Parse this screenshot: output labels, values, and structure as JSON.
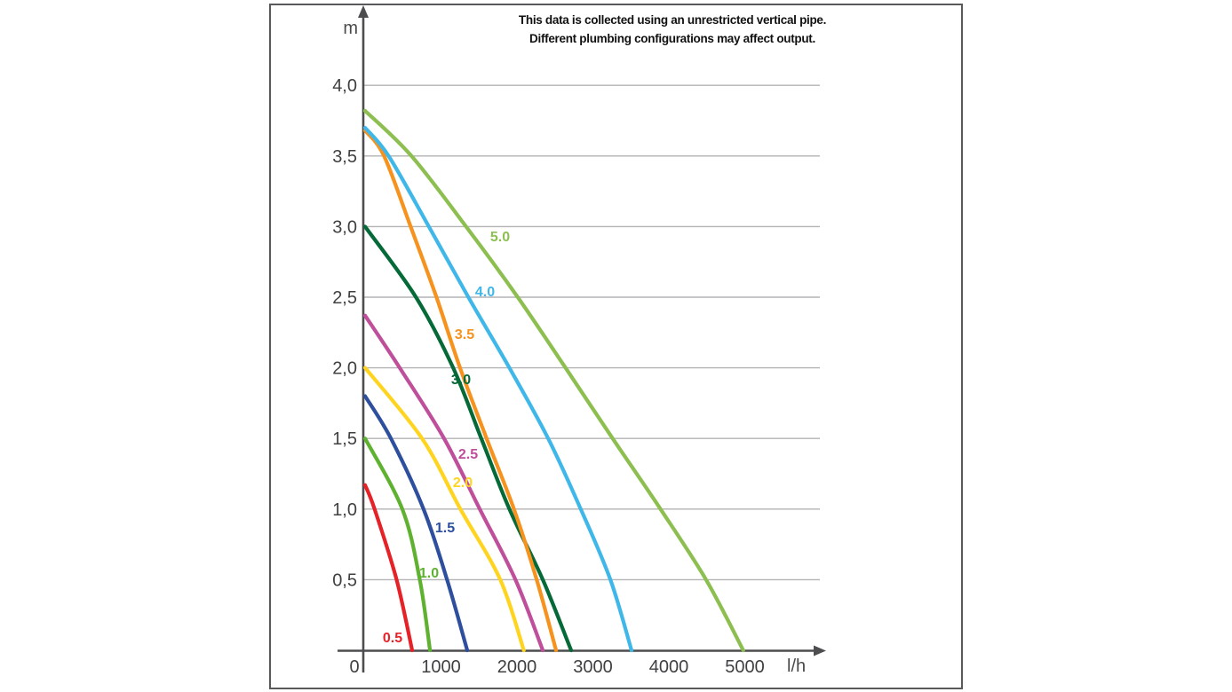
{
  "header": {
    "line1": "This data is collected using an unrestricted vertical pipe.",
    "line2": "Different plumbing configurations may affect output."
  },
  "chart_data": {
    "type": "line",
    "title": "",
    "xlabel": "l/h",
    "ylabel": "m",
    "xlim": [
      0,
      6000
    ],
    "ylim": [
      0,
      4.5
    ],
    "grid": "horizontal-only",
    "annotations": [
      "This data is collected using an unrestricted vertical pipe.",
      "Different plumbing configurations may affect output."
    ],
    "x_ticks": [
      {
        "v": 0,
        "label": "0"
      },
      {
        "v": 1000,
        "label": "1000"
      },
      {
        "v": 2000,
        "label": "2000"
      },
      {
        "v": 3000,
        "label": "3000"
      },
      {
        "v": 4000,
        "label": "4000"
      },
      {
        "v": 5000,
        "label": "5000"
      }
    ],
    "y_ticks": [
      {
        "v": 4.0,
        "label": "4,0"
      },
      {
        "v": 3.5,
        "label": "3,5"
      },
      {
        "v": 3.0,
        "label": "3,0"
      },
      {
        "v": 2.5,
        "label": "2,5"
      },
      {
        "v": 2.0,
        "label": "2,0"
      },
      {
        "v": 1.5,
        "label": "1,5"
      },
      {
        "v": 1.0,
        "label": "1,0"
      },
      {
        "v": 0.5,
        "label": "0,5"
      }
    ],
    "series": [
      {
        "name": "0.5",
        "color": "#e62229",
        "label_pos": [
          363,
          0.09
        ],
        "points": [
          [
            0,
            1.17
          ],
          [
            125,
            1.0
          ],
          [
            415,
            0.5
          ],
          [
            620,
            0
          ]
        ]
      },
      {
        "name": "1.0",
        "color": "#5fb130",
        "label_pos": [
          842,
          0.55
        ],
        "points": [
          [
            0,
            1.5
          ],
          [
            490,
            1.0
          ],
          [
            720,
            0.5
          ],
          [
            855,
            0
          ]
        ]
      },
      {
        "name": "1.5",
        "color": "#2d4f9e",
        "label_pos": [
          1053,
          0.87
        ],
        "points": [
          [
            0,
            1.8
          ],
          [
            340,
            1.5
          ],
          [
            770,
            1.0
          ],
          [
            1080,
            0.5
          ],
          [
            1345,
            0
          ]
        ]
      },
      {
        "name": "2.0",
        "color": "#ffd41f",
        "label_pos": [
          1287,
          1.19
        ],
        "points": [
          [
            0,
            2.0
          ],
          [
            750,
            1.5
          ],
          [
            1255,
            1.0
          ],
          [
            1780,
            0.5
          ],
          [
            2090,
            0
          ]
        ]
      },
      {
        "name": "2.5",
        "color": "#bf4e9b",
        "label_pos": [
          1357,
          1.39
        ],
        "points": [
          [
            0,
            2.37
          ],
          [
            456,
            2.0
          ],
          [
            1040,
            1.5
          ],
          [
            1510,
            1.0
          ],
          [
            1980,
            0.5
          ],
          [
            2340,
            0
          ]
        ]
      },
      {
        "name": "3.0",
        "color": "#056938",
        "label_pos": [
          1263,
          1.92
        ],
        "points": [
          [
            0,
            3.0
          ],
          [
            670,
            2.5
          ],
          [
            1160,
            2.0
          ],
          [
            1530,
            1.5
          ],
          [
            1900,
            1.0
          ],
          [
            2340,
            0.5
          ],
          [
            2713,
            0
          ]
        ]
      },
      {
        "name": "3.5",
        "color": "#f6921e",
        "label_pos": [
          1310,
          2.24
        ],
        "points": [
          [
            0,
            3.68
          ],
          [
            250,
            3.5
          ],
          [
            600,
            3.0
          ],
          [
            940,
            2.5
          ],
          [
            1250,
            2.0
          ],
          [
            1600,
            1.5
          ],
          [
            1960,
            1.0
          ],
          [
            2260,
            0.5
          ],
          [
            2515,
            0
          ]
        ]
      },
      {
        "name": "4.0",
        "color": "#3fb7e9",
        "label_pos": [
          1579,
          2.54
        ],
        "points": [
          [
            0,
            3.7
          ],
          [
            310,
            3.5
          ],
          [
            840,
            3.0
          ],
          [
            1360,
            2.5
          ],
          [
            1900,
            2.0
          ],
          [
            2410,
            1.5
          ],
          [
            2840,
            1.0
          ],
          [
            3230,
            0.5
          ],
          [
            3509,
            0
          ]
        ]
      },
      {
        "name": "5.0",
        "color": "#8cbf4f",
        "label_pos": [
          1778,
          2.93
        ],
        "points": [
          [
            0,
            3.82
          ],
          [
            610,
            3.5
          ],
          [
            1330,
            3.0
          ],
          [
            2010,
            2.5
          ],
          [
            2640,
            2.0
          ],
          [
            3260,
            1.5
          ],
          [
            3890,
            1.0
          ],
          [
            4490,
            0.5
          ],
          [
            4980,
            0
          ]
        ]
      }
    ]
  },
  "colors": {
    "axis": "#4d4d4f",
    "grid": "#b3b3b5",
    "tick_text": "#404042",
    "frame": "#58595b",
    "background": "#ffffff"
  }
}
